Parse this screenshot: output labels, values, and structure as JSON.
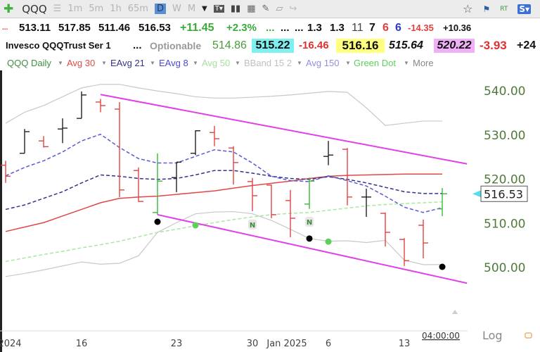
{
  "toolbar": {
    "symbol": "QQQ",
    "intervals": [
      "1m",
      "5m",
      "1h",
      "65m",
      "D",
      "W",
      "M"
    ],
    "selected": "D",
    "rt": "RT",
    "s_badge": "S▾",
    "icons": [
      "add-icon",
      "list-icon",
      "dropdown-arrow-icon",
      "text-tool-icon",
      "bar-chart-icon",
      "table-add-icon",
      "pencil-icon",
      "note-icon",
      "share-icon",
      "star-icon",
      "flag-icon"
    ]
  },
  "quote": {
    "prefix": "...",
    "open": "513.11",
    "high": "517.85",
    "low": "511.46",
    "close": "516.53",
    "change": "+11.45",
    "change_pct": "+2.3%",
    "ellipses": [
      "...",
      "...",
      "..."
    ],
    "v1": "1.3",
    "v2": "1.3",
    "v3": "11",
    "v4": "7",
    "v5": "6",
    "v6": "6",
    "v7": "-14.35",
    "v8": "+10.36"
  },
  "info": {
    "name": "Invesco QQQTrust Ser 1",
    "more": "...",
    "optionable": "Optionable",
    "p1": "514.86",
    "p2": "515.22",
    "p3": "-16.46",
    "p4": "516.16",
    "p5": "515.64",
    "p6": "520.22",
    "p7": "-3.93",
    "p8": "+24"
  },
  "indicators": [
    {
      "label": "QQQ Daily",
      "color": "#3f8f3f"
    },
    {
      "label": "Avg 30",
      "color": "#e04848"
    },
    {
      "label": "EAvg 21",
      "color": "#33338a"
    },
    {
      "label": "EAvg 8",
      "color": "#4a4ad0"
    },
    {
      "label": "Avg 50",
      "color": "#a8e0a0"
    },
    {
      "label": "BBand 15 2",
      "color": "#c0c0c0"
    },
    {
      "label": "Avg 150",
      "color": "#9090e0"
    },
    {
      "label": "Green Dot",
      "color": "#5cd05c"
    },
    {
      "label": "More",
      "color": "#888888"
    }
  ],
  "footer": {
    "time": "04:00:00",
    "scale": "Log"
  },
  "chart_data": {
    "type": "ohlc",
    "ylim": [
      496,
      542
    ],
    "yticks": [
      "540.00",
      "530.00",
      "520.00",
      "510.00",
      "500.00"
    ],
    "ytick_values": [
      540,
      530,
      520,
      510,
      500
    ],
    "last_price": "516.53",
    "xtick_labels": [
      {
        "label": "2024",
        "date": "Dec 10"
      },
      {
        "label": "16",
        "date": "Dec 16"
      },
      {
        "label": "23",
        "date": "Dec 23"
      },
      {
        "label": "30",
        "date": "Dec 30"
      },
      {
        "label": "Jan 2025",
        "date": "Jan 2"
      },
      {
        "label": "6",
        "date": "Jan 6"
      },
      {
        "label": "13",
        "date": "Jan 13"
      }
    ],
    "dates": [
      "Dec 10",
      "Dec 11",
      "Dec 12",
      "Dec 13",
      "Dec 16",
      "Dec 17",
      "Dec 18",
      "Dec 19",
      "Dec 20",
      "Dec 23",
      "Dec 24",
      "Dec 26",
      "Dec 27",
      "Dec 30",
      "Dec 31",
      "Jan 2",
      "Jan 3",
      "Jan 6",
      "Jan 7",
      "Jan 8",
      "Jan 10",
      "Jan 13",
      "Jan 14",
      "Jan 15"
    ],
    "bars": [
      [
        523,
        524,
        519,
        520.5,
        "red"
      ],
      [
        525.7,
        531.2,
        525.7,
        530.6,
        "black"
      ],
      [
        528.5,
        529.6,
        527,
        527.2,
        "red"
      ],
      [
        531.2,
        533.6,
        528,
        531.4,
        "black"
      ],
      [
        533.6,
        539.7,
        533.6,
        538.9,
        "black"
      ],
      [
        537.3,
        538,
        535,
        536.5,
        "red"
      ],
      [
        535.7,
        537.3,
        515.8,
        517.4,
        "red"
      ],
      [
        521.8,
        522.5,
        514.7,
        514.8,
        "red"
      ],
      [
        512.3,
        525.7,
        511.8,
        519.4,
        "green"
      ],
      [
        520.2,
        523.7,
        516.9,
        523.7,
        "black"
      ],
      [
        525.7,
        530.9,
        525.3,
        530.8,
        "black"
      ],
      [
        530.4,
        531.9,
        527.3,
        529,
        "red"
      ],
      [
        526.9,
        527.3,
        518.6,
        523.6,
        "red"
      ],
      [
        519.3,
        520.1,
        512.6,
        516.1,
        "red"
      ],
      [
        518.5,
        518.6,
        511,
        511.8,
        "red"
      ],
      [
        515,
        517.4,
        506.7,
        511,
        "red"
      ],
      [
        514.2,
        520.2,
        513.1,
        519.4,
        "green"
      ],
      [
        525,
        528.5,
        523,
        525.3,
        "black"
      ],
      [
        526.6,
        526.9,
        513.9,
        515.8,
        "red"
      ],
      [
        515.8,
        517.7,
        511.3,
        515.8,
        "black"
      ],
      [
        512.1,
        512.3,
        504.6,
        507.8,
        "red"
      ],
      [
        506.2,
        506.5,
        500.2,
        501.4,
        "red"
      ],
      [
        509.4,
        510.7,
        501.9,
        505.4,
        "red"
      ],
      [
        513.11,
        517.85,
        511.46,
        516.53,
        "green"
      ]
    ],
    "series": [
      {
        "name": "Avg 30",
        "color": "#e04848",
        "dash": false,
        "values": [
          508,
          509,
          510,
          511.5,
          513,
          514.5,
          515.5,
          515.8,
          516,
          516.4,
          516.8,
          517.2,
          517.8,
          518.4,
          518.9,
          519.4,
          520,
          520.5,
          520.7,
          520.8,
          520.9,
          521,
          521,
          521
        ]
      },
      {
        "name": "EAvg 21",
        "color": "#33338a",
        "dash": true,
        "values": [
          513,
          514,
          515.5,
          517,
          519,
          520.8,
          520.5,
          520,
          519.8,
          520,
          520.8,
          521.8,
          521.8,
          521.2,
          520.5,
          520,
          519.8,
          520.4,
          519.8,
          519,
          518,
          517,
          516.6,
          516.6
        ]
      },
      {
        "name": "EAvg 8",
        "color": "#5a5ad8",
        "dash": true,
        "values": [
          520.6,
          522.5,
          524,
          526,
          528.5,
          530,
          527,
          524.5,
          523.5,
          523.5,
          525,
          526.5,
          526,
          523.5,
          520.5,
          519.5,
          519.3,
          520.6,
          519.5,
          518.3,
          516,
          513.5,
          512.3,
          513.4
        ]
      },
      {
        "name": "Avg 50",
        "color": "#a8e8a0",
        "dash": true,
        "values": [
          501.2,
          502,
          502.8,
          503.5,
          504.3,
          505,
          505.8,
          506.8,
          507.8,
          508.5,
          509.3,
          510,
          510.7,
          511.3,
          511.8,
          512.1,
          512.3,
          512.8,
          513.3,
          513.8,
          514.1,
          514.3,
          514.5,
          514.7
        ]
      },
      {
        "name": "BBand 15 2 upper",
        "color": "#c8c8c8",
        "dash": false,
        "values": [
          532.5,
          535,
          536.5,
          538.5,
          540.5,
          541.3,
          541.3,
          540.5,
          539.8,
          539.2,
          538.5,
          538.2,
          538.2,
          538.4,
          538.6,
          538.9,
          539.3,
          539.7,
          539.5,
          536,
          532,
          532.5,
          533,
          533
        ]
      },
      {
        "name": "BBand 15 2 lower",
        "color": "#c8c8c8",
        "dash": false,
        "values": [
          497.8,
          498.5,
          499.3,
          500.2,
          501.1,
          500.6,
          500.8,
          502.5,
          507.8,
          510,
          512,
          512.4,
          512.5,
          512,
          510.5,
          508.5,
          506.4,
          505.8,
          505.9,
          505.5,
          506,
          501.5,
          500.5,
          500.5
        ]
      }
    ],
    "trendlines": [
      {
        "color": "#e040e8",
        "from": [
          "Dec 17",
          539
        ],
        "to": [
          "Jan 16",
          523.3
        ]
      },
      {
        "color": "#e040e8",
        "from": [
          "Dec 20",
          511.8
        ],
        "to": [
          "Jan 16",
          496.3
        ]
      }
    ],
    "dots": [
      {
        "date": "Dec 20",
        "value": 510.2,
        "color": "#000000"
      },
      {
        "date": "Jan 3",
        "value": 506.4,
        "color": "#000000"
      },
      {
        "date": "Jan 15",
        "value": 500,
        "color": "#000000"
      },
      {
        "date": "Dec 24",
        "value": 509.4,
        "color": "#5cd05c"
      },
      {
        "date": "Jan 6",
        "value": 505.7,
        "color": "#5cd05c"
      }
    ],
    "markers": [
      {
        "date": "Dec 30",
        "value": 509.6,
        "label": "N"
      },
      {
        "date": "Jan 3",
        "value": 510.2,
        "label": "N"
      }
    ]
  }
}
